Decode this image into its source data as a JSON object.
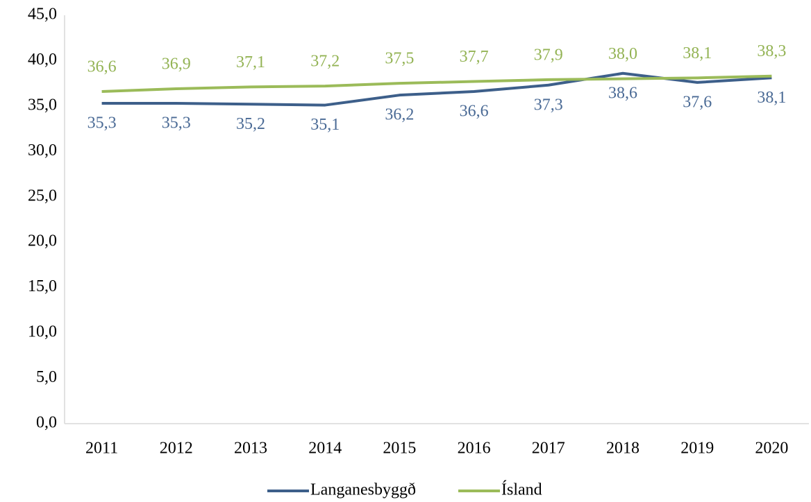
{
  "chart_data": {
    "type": "line",
    "categories": [
      "2011",
      "2012",
      "2013",
      "2014",
      "2015",
      "2016",
      "2017",
      "2018",
      "2019",
      "2020"
    ],
    "series": [
      {
        "name": "Langanesbyggð",
        "color": "#3d5f8a",
        "label_color": "#4a6a95",
        "label_position": "below",
        "values": [
          35.3,
          35.3,
          35.2,
          35.1,
          36.2,
          36.6,
          37.3,
          38.6,
          37.6,
          38.1
        ],
        "value_labels": [
          "35,3",
          "35,3",
          "35,2",
          "35,1",
          "36,2",
          "36,6",
          "37,3",
          "38,6",
          "37,6",
          "38,1"
        ]
      },
      {
        "name": "Ísland",
        "color": "#9bbb59",
        "label_color": "#93b354",
        "label_position": "above",
        "values": [
          36.6,
          36.9,
          37.1,
          37.2,
          37.5,
          37.7,
          37.9,
          38.0,
          38.1,
          38.3
        ],
        "value_labels": [
          "36,6",
          "36,9",
          "37,1",
          "37,2",
          "37,5",
          "37,7",
          "37,9",
          "38,0",
          "38,1",
          "38,3"
        ]
      }
    ],
    "ylim": [
      0,
      45
    ],
    "yticks": [
      {
        "value": 0,
        "label": "0,0"
      },
      {
        "value": 5,
        "label": "5,0"
      },
      {
        "value": 10,
        "label": "10,0"
      },
      {
        "value": 15,
        "label": "15,0"
      },
      {
        "value": 20,
        "label": "20,0"
      },
      {
        "value": 25,
        "label": "25,0"
      },
      {
        "value": 30,
        "label": "30,0"
      },
      {
        "value": 35,
        "label": "35,0"
      },
      {
        "value": 40,
        "label": "40,0"
      },
      {
        "value": 45,
        "label": "45,0"
      }
    ],
    "grid": false,
    "legend": "bottom"
  }
}
